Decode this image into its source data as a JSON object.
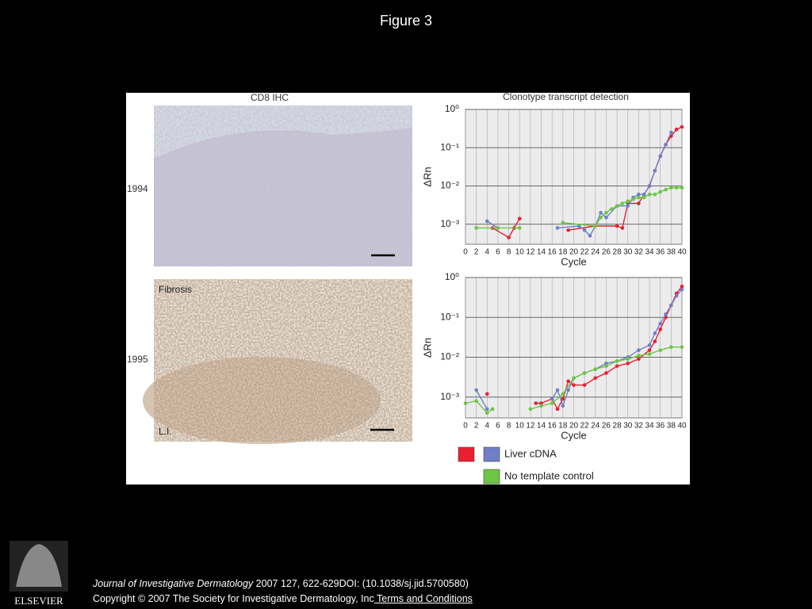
{
  "slide": {
    "title": "Figure 3"
  },
  "figure": {
    "panel_title": "CD8 IHC",
    "panels": [
      {
        "year": "1994"
      },
      {
        "year": "1995",
        "labels": [
          "Fibrosis",
          "L.I."
        ]
      }
    ]
  },
  "chart_data": [
    {
      "type": "line",
      "title": "Clonotype transcript detection",
      "x_label": "Cycle",
      "y_label": "ΔRn",
      "log_y": true,
      "grid": true,
      "xlim": [
        0,
        40
      ],
      "ylim": [
        0.0003,
        1
      ],
      "xticks": [
        0,
        2,
        4,
        6,
        8,
        10,
        12,
        14,
        16,
        18,
        20,
        22,
        24,
        26,
        28,
        30,
        32,
        34,
        36,
        38,
        40
      ],
      "yticks": [
        {
          "value": 0.001,
          "label": "10⁻³"
        },
        {
          "value": 0.01,
          "label": "10⁻²"
        },
        {
          "value": 0.1,
          "label": "10⁻¹"
        },
        {
          "value": 1,
          "label": "10⁰"
        }
      ],
      "series": [
        {
          "color": "#e8202f",
          "x": [
            5,
            8,
            9,
            10,
            15,
            19,
            24,
            28,
            29,
            30,
            32,
            33,
            34,
            35,
            36,
            37,
            38,
            39,
            40
          ],
          "values": [
            0.0008,
            0.00045,
            0.0008,
            0.0014,
            null,
            0.0007,
            0.0009,
            0.0009,
            0.0008,
            0.0035,
            0.0035,
            0.006,
            0.01,
            0.025,
            0.06,
            0.12,
            0.2,
            0.3,
            0.35
          ]
        },
        {
          "color": "#6f7fc8",
          "x": [
            4,
            6,
            12,
            17,
            21,
            22,
            23,
            24,
            25,
            26,
            28,
            30,
            31,
            32,
            33,
            34,
            35,
            36,
            37,
            38
          ],
          "values": [
            0.0012,
            0.0008,
            null,
            0.0008,
            0.0009,
            0.0007,
            0.0005,
            0.0009,
            0.002,
            0.0015,
            0.003,
            0.003,
            0.005,
            0.006,
            0.006,
            0.01,
            0.025,
            0.06,
            0.12,
            0.25
          ]
        },
        {
          "color": "#6cc644",
          "x": [
            2,
            6,
            10,
            17,
            18,
            24,
            25,
            26,
            27,
            28,
            29,
            30,
            31,
            32,
            33,
            34,
            35,
            36,
            37,
            38,
            39,
            40
          ],
          "values": [
            0.0008,
            0.0008,
            0.0008,
            null,
            0.0011,
            0.0009,
            0.0015,
            0.002,
            0.0025,
            0.003,
            0.0035,
            0.004,
            0.0045,
            0.005,
            0.005,
            0.006,
            0.006,
            0.007,
            0.008,
            0.009,
            0.009,
            0.009
          ]
        }
      ]
    },
    {
      "type": "line",
      "x_label": "Cycle",
      "y_label": "ΔRn",
      "log_y": true,
      "grid": true,
      "legend": "bottom",
      "xlim": [
        0,
        40
      ],
      "ylim": [
        0.0003,
        1
      ],
      "xticks": [
        0,
        2,
        4,
        6,
        8,
        10,
        12,
        14,
        16,
        18,
        20,
        22,
        24,
        26,
        28,
        30,
        32,
        34,
        36,
        38,
        40
      ],
      "yticks": [
        {
          "value": 0.001,
          "label": "10⁻³"
        },
        {
          "value": 0.01,
          "label": "10⁻²"
        },
        {
          "value": 0.1,
          "label": "10⁻¹"
        },
        {
          "value": 1,
          "label": "10⁰"
        }
      ],
      "series": [
        {
          "name": "Liver cDNA",
          "color": "#e8202f",
          "x": [
            4,
            10,
            13,
            14,
            16,
            17,
            18,
            19,
            20,
            22,
            24,
            26,
            28,
            30,
            32,
            34,
            35,
            36,
            37,
            38,
            39,
            40
          ],
          "values": [
            0.0012,
            null,
            0.0007,
            0.0007,
            0.0009,
            0.0005,
            0.0009,
            0.0025,
            0.002,
            0.002,
            0.003,
            0.004,
            0.006,
            0.007,
            0.009,
            0.015,
            0.025,
            0.05,
            0.1,
            0.2,
            0.4,
            0.6
          ]
        },
        {
          "name": "Liver cDNA",
          "color": "#6f7fc8",
          "x": [
            2,
            4,
            8,
            16,
            17,
            18,
            19,
            20,
            22,
            24,
            26,
            28,
            30,
            32,
            34,
            35,
            36,
            37,
            38,
            39,
            40
          ],
          "values": [
            0.0015,
            0.0005,
            null,
            0.0009,
            0.0015,
            0.0006,
            0.0015,
            0.003,
            0.004,
            0.005,
            0.007,
            0.008,
            0.01,
            0.015,
            0.02,
            0.04,
            0.07,
            0.12,
            0.2,
            0.35,
            0.5
          ]
        },
        {
          "name": "No template control",
          "color": "#6cc644",
          "x": [
            0,
            2,
            4,
            5,
            8,
            12,
            14,
            16,
            18,
            20,
            22,
            24,
            26,
            28,
            30,
            32,
            34,
            36,
            38,
            40
          ],
          "values": [
            0.0007,
            0.0008,
            0.0004,
            0.0005,
            null,
            0.0005,
            0.0006,
            0.0007,
            0.0012,
            0.003,
            0.004,
            0.005,
            0.006,
            0.008,
            0.009,
            0.011,
            0.012,
            0.015,
            0.018,
            0.018
          ]
        }
      ]
    }
  ],
  "footer": {
    "journal": "Journal of Investigative Dermatology",
    "citation": " 2007 127, 622-629DOI: (10.1038/sj.jid.5700580)",
    "copyright": "Copyright © 2007 The Society for Investigative Dermatology, Inc",
    "link": " Terms and Conditions",
    "logo": "ELSEVIER"
  }
}
